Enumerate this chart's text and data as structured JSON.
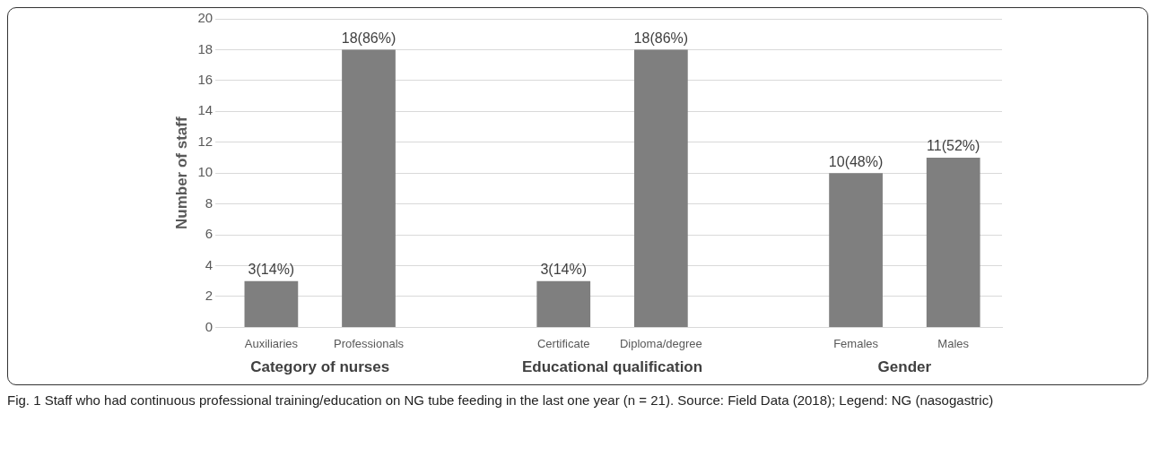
{
  "chart_data": {
    "type": "bar",
    "ylabel": "Number of staff",
    "categories": [
      "Auxiliaries",
      "Professionals",
      null,
      "Certificate",
      "Diploma/degree",
      null,
      "Females",
      "Males"
    ],
    "values": [
      3,
      18,
      null,
      3,
      18,
      null,
      10,
      11
    ],
    "value_labels": [
      "3(14%)",
      "18(86%)",
      null,
      "3(14%)",
      "18(86%)",
      null,
      "10(48%)",
      "11(52%)"
    ],
    "color": "#7f7f7f",
    "ylim": [
      0,
      20
    ],
    "yticks": [
      0,
      2,
      4,
      6,
      8,
      10,
      12,
      14,
      16,
      18,
      20
    ],
    "grid": "y",
    "legend": false,
    "annotations": [
      "Category of nurses",
      "Educational qualification",
      "Gender",
      "Fig. 1 Staff who had continuous professional training/education on NG tube feeding in the last one year (n = 21). Source: Field Data (2018); Legend: NG (nasogastric)"
    ]
  }
}
